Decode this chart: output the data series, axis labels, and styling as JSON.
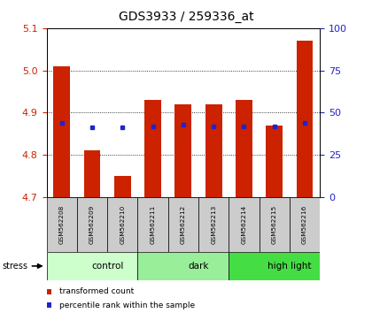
{
  "title": "GDS3933 / 259336_at",
  "samples": [
    "GSM562208",
    "GSM562209",
    "GSM562210",
    "GSM562211",
    "GSM562212",
    "GSM562213",
    "GSM562214",
    "GSM562215",
    "GSM562216"
  ],
  "red_values": [
    5.01,
    4.81,
    4.75,
    4.93,
    4.92,
    4.92,
    4.93,
    4.87,
    5.07
  ],
  "blue_values": [
    4.875,
    4.865,
    4.865,
    4.868,
    4.872,
    4.868,
    4.868,
    4.868,
    4.875
  ],
  "ymin": 4.7,
  "ymax": 5.1,
  "yticks_left": [
    4.7,
    4.8,
    4.9,
    5.0,
    5.1
  ],
  "right_yticks_pct": [
    0,
    25,
    50,
    75,
    100
  ],
  "groups": [
    {
      "label": "control",
      "start": 0,
      "end": 3,
      "color": "#ccffcc"
    },
    {
      "label": "dark",
      "start": 3,
      "end": 6,
      "color": "#99ee99"
    },
    {
      "label": "high light",
      "start": 6,
      "end": 9,
      "color": "#44dd44"
    }
  ],
  "stress_label": "stress",
  "legend_red": "transformed count",
  "legend_blue": "percentile rank within the sample",
  "bar_color": "#cc2200",
  "blue_color": "#2222cc",
  "left_tick_color": "#cc2200",
  "right_tick_color": "#2222cc",
  "sample_bg_color": "#cccccc",
  "title_color": "#000000"
}
